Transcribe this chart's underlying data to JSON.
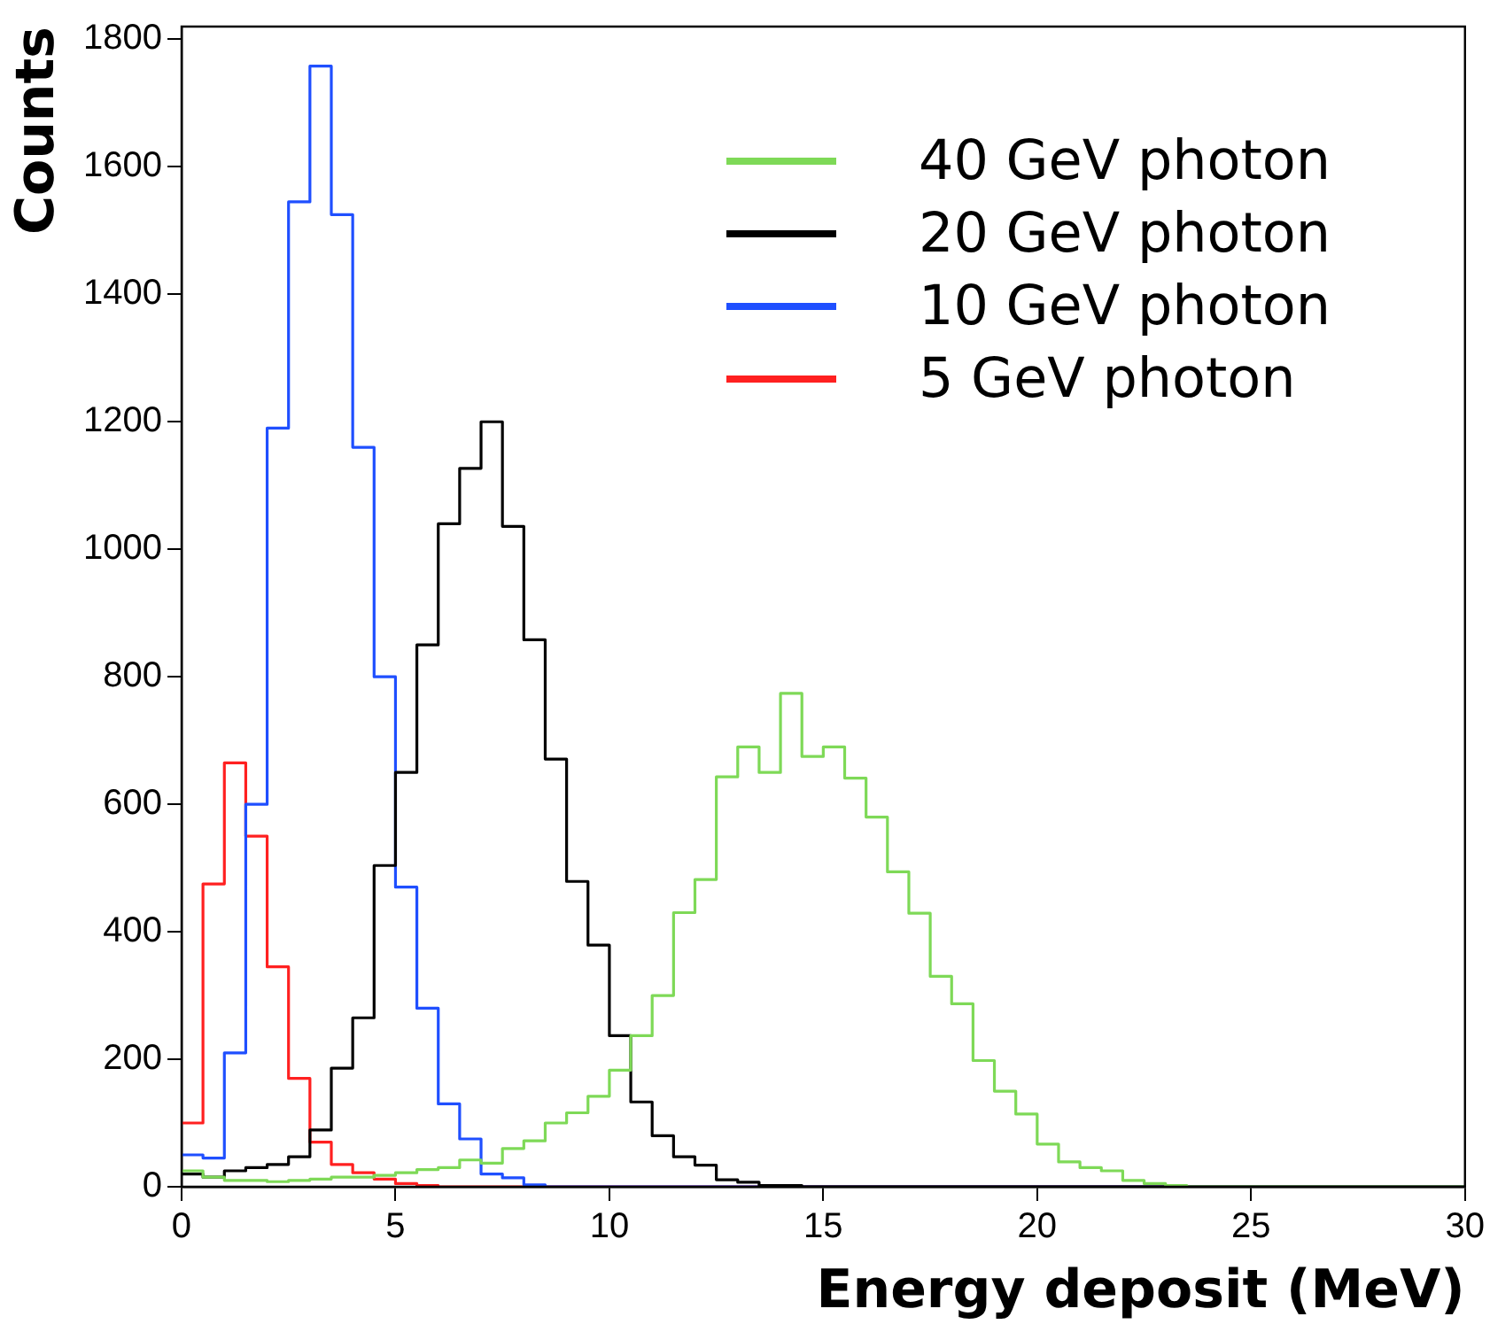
{
  "chart_data": {
    "type": "histogram",
    "xlabel": "Energy deposit (MeV)",
    "ylabel": "Counts",
    "bins": [
      0,
      0.5,
      1,
      1.5,
      2,
      2.5,
      3,
      3.5,
      4,
      4.5,
      5,
      5.5,
      6,
      6.5,
      7,
      7.5,
      8,
      8.5,
      9,
      9.5,
      10,
      10.5,
      11,
      11.5,
      12,
      12.5,
      13,
      13.5,
      14,
      14.5,
      15,
      15.5,
      16,
      16.5,
      17,
      17.5,
      18,
      18.5,
      19,
      19.5,
      20,
      20.5,
      21,
      21.5,
      22,
      22.5,
      23,
      23.5,
      24,
      24.5,
      25,
      25.5,
      26,
      26.5,
      27,
      27.5,
      28,
      28.5,
      29,
      29.5,
      30
    ],
    "series": [
      {
        "name": "40 GeV photon",
        "color": "#7ed957",
        "values": [
          25,
          15,
          10,
          10,
          8,
          10,
          12,
          15,
          15,
          18,
          22,
          27,
          30,
          42,
          37,
          60,
          72,
          100,
          116,
          142,
          183,
          237,
          300,
          430,
          482,
          643,
          690,
          650,
          774,
          675,
          690,
          641,
          580,
          494,
          429,
          330,
          287,
          198,
          150,
          114,
          67,
          39,
          30,
          25,
          10,
          5,
          2,
          0,
          0,
          0,
          0,
          0,
          0,
          0,
          0,
          0,
          0,
          0,
          0,
          0
        ]
      },
      {
        "name": "20 GeV photon",
        "color": "#000000",
        "values": [
          20,
          15,
          25,
          30,
          35,
          47,
          89,
          186,
          265,
          504,
          650,
          850,
          1040,
          1127,
          1200,
          1036,
          858,
          671,
          479,
          379,
          237,
          133,
          80,
          47,
          34,
          11,
          7,
          2,
          2,
          0,
          0,
          0,
          0,
          0,
          0,
          0,
          0,
          0,
          0,
          0,
          0,
          0,
          0,
          0,
          0,
          0,
          0,
          0,
          0,
          0,
          0,
          0,
          0,
          0,
          0,
          0,
          0,
          0,
          0,
          0
        ]
      },
      {
        "name": "10 GeV photon",
        "color": "#1f4fff",
        "values": [
          50,
          45,
          210,
          600,
          1190,
          1545,
          1758,
          1525,
          1160,
          800,
          470,
          280,
          130,
          75,
          20,
          14,
          3,
          0,
          0,
          0,
          0,
          0,
          0,
          0,
          0,
          0,
          0,
          0,
          0,
          0,
          0,
          0,
          0,
          0,
          0,
          0,
          0,
          0,
          0,
          0,
          0,
          0,
          0,
          0,
          0,
          0,
          0,
          0,
          0,
          0,
          0,
          0,
          0,
          0,
          0,
          0,
          0,
          0,
          0,
          0
        ]
      },
      {
        "name": "5 GeV photon",
        "color": "#ff2020",
        "values": [
          100,
          475,
          665,
          550,
          345,
          170,
          70,
          35,
          22,
          12,
          5,
          2,
          0,
          0,
          0,
          0,
          0,
          0,
          0,
          0,
          0,
          0,
          0,
          0,
          0,
          0,
          0,
          0,
          0,
          0,
          0,
          0,
          0,
          0,
          0,
          0,
          0,
          0,
          0,
          0,
          0,
          0,
          0,
          0,
          0,
          0,
          0,
          0,
          0,
          0,
          0,
          0,
          0,
          0,
          0,
          0,
          0,
          0,
          0,
          0
        ]
      }
    ],
    "xlim": [
      0,
      30
    ],
    "xticks": [
      0,
      5,
      10,
      15,
      20,
      25,
      30
    ],
    "ylim": [
      0,
      1820
    ],
    "yticks": [
      0,
      200,
      400,
      600,
      800,
      1000,
      1200,
      1400,
      1600,
      1800
    ],
    "legend": "top right"
  }
}
